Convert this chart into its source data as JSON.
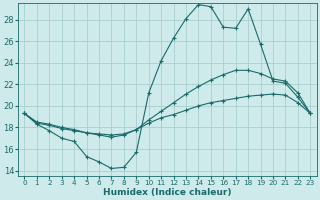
{
  "xlabel": "Humidex (Indice chaleur)",
  "bg_color": "#ceeaea",
  "grid_color": "#aacece",
  "line_color": "#1a6b6b",
  "xlim": [
    -0.5,
    23.5
  ],
  "ylim": [
    13.5,
    29.5
  ],
  "xticks": [
    0,
    1,
    2,
    3,
    4,
    5,
    6,
    7,
    8,
    9,
    10,
    11,
    12,
    13,
    14,
    15,
    16,
    17,
    18,
    19,
    20,
    21,
    22,
    23
  ],
  "yticks": [
    14,
    16,
    18,
    20,
    22,
    24,
    26,
    28
  ],
  "line1_x": [
    0,
    1,
    2,
    3,
    4,
    5,
    6,
    7,
    8,
    9,
    10,
    11,
    12,
    13,
    14,
    15,
    16,
    17,
    18,
    19,
    20,
    21,
    22,
    23
  ],
  "line1_y": [
    19.3,
    18.3,
    17.7,
    17.0,
    16.7,
    15.3,
    14.8,
    14.2,
    14.3,
    15.7,
    21.2,
    24.2,
    26.3,
    28.1,
    29.4,
    29.2,
    27.3,
    27.2,
    29.0,
    25.7,
    22.3,
    22.1,
    20.8,
    19.3
  ],
  "line2_x": [
    0,
    1,
    2,
    3,
    4,
    5,
    6,
    7,
    8,
    9,
    10,
    11,
    12,
    13,
    14,
    15,
    16,
    17,
    18,
    19,
    20,
    21,
    22,
    23
  ],
  "line2_y": [
    19.3,
    18.5,
    18.3,
    18.0,
    17.8,
    17.5,
    17.3,
    17.1,
    17.3,
    17.8,
    18.7,
    19.5,
    20.3,
    21.1,
    21.8,
    22.4,
    22.9,
    23.3,
    23.3,
    23.0,
    22.5,
    22.3,
    21.2,
    19.3
  ],
  "line3_x": [
    0,
    1,
    2,
    3,
    4,
    5,
    6,
    7,
    8,
    9,
    10,
    11,
    12,
    13,
    14,
    15,
    16,
    17,
    18,
    19,
    20,
    21,
    22,
    23
  ],
  "line3_y": [
    19.3,
    18.4,
    18.2,
    17.9,
    17.7,
    17.5,
    17.4,
    17.3,
    17.4,
    17.8,
    18.4,
    18.9,
    19.2,
    19.6,
    20.0,
    20.3,
    20.5,
    20.7,
    20.9,
    21.0,
    21.1,
    21.0,
    20.3,
    19.3
  ]
}
